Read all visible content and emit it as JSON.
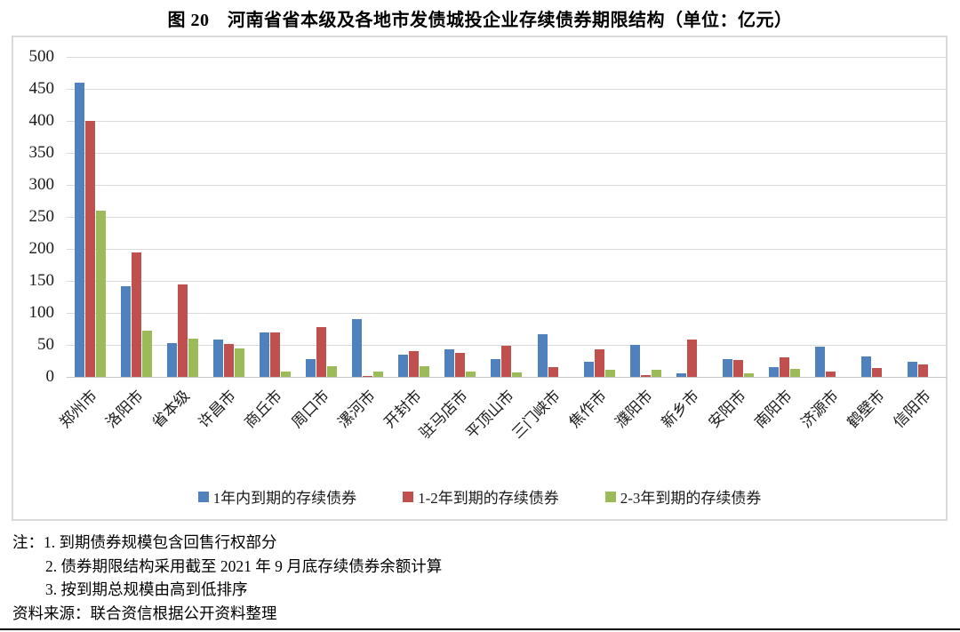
{
  "page": {
    "title": "图 20　河南省省本级及各地市发债城投企业存续债券期限结构（单位：亿元）",
    "notes": [
      "注：1. 到期债券规模包含回售行权部分",
      "2. 债券期限结构采用截至 2021 年 9 月底存续债券余额计算",
      "3. 按到期总规模由高到低排序"
    ],
    "source": "资料来源：联合资信根据公开资料整理"
  },
  "colors": {
    "series_blue": "#4F81BD",
    "series_red": "#C0504D",
    "series_green": "#9BBB59",
    "gridline": "#D9D9D9",
    "chart_border": "#D9D9D9"
  },
  "chart_data": {
    "type": "bar",
    "title": "图 20　河南省省本级及各地市发债城投企业存续债券期限结构（单位：亿元）",
    "unit": "亿元",
    "categories": [
      "郑州市",
      "洛阳市",
      "省本级",
      "许昌市",
      "商丘市",
      "周口市",
      "漯河市",
      "开封市",
      "驻马店市",
      "平顶山市",
      "三门峡市",
      "焦作市",
      "濮阳市",
      "新乡市",
      "安阳市",
      "南阳市",
      "济源市",
      "鹤壁市",
      "信阳市"
    ],
    "series": [
      {
        "name": "1年内到期的存续债券",
        "color": "#4F81BD",
        "values": [
          460,
          142,
          53,
          58,
          70,
          28,
          90,
          35,
          43,
          28,
          67,
          24,
          50,
          5,
          28,
          15,
          47,
          32,
          23
        ]
      },
      {
        "name": "1-2年到期的存续债券",
        "color": "#C0504D",
        "values": [
          400,
          195,
          144,
          52,
          69,
          78,
          2,
          40,
          38,
          49,
          15,
          43,
          3,
          58,
          26,
          31,
          8,
          14,
          20
        ]
      },
      {
        "name": "2-3年到期的存续债券",
        "color": "#9BBB59",
        "values": [
          260,
          72,
          60,
          45,
          9,
          17,
          9,
          16,
          8,
          7,
          0,
          11,
          11,
          0,
          6,
          12,
          0,
          0,
          0
        ]
      }
    ],
    "ylim": [
      0,
      500
    ],
    "ytick_step": 50,
    "grid": true,
    "legend_position": "bottom"
  }
}
